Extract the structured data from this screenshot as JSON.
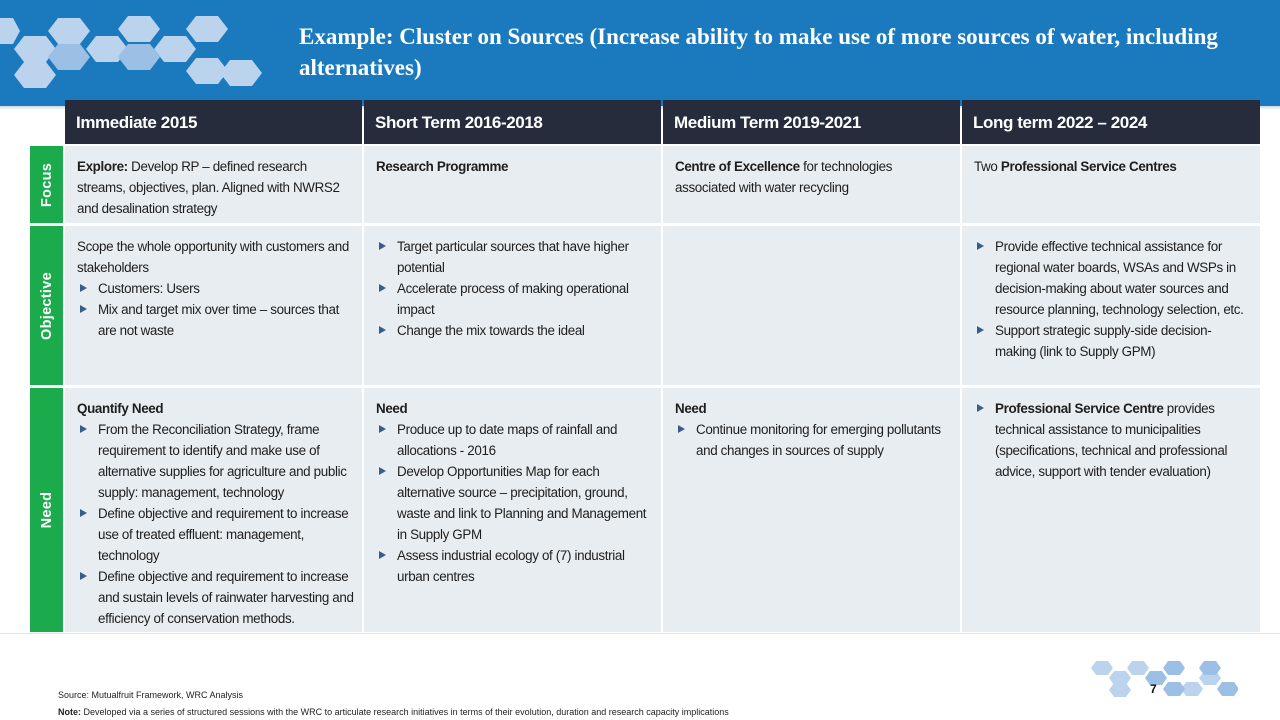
{
  "title": "Example: Cluster on Sources (Increase ability to make use of more sources of water, including alternatives)",
  "columns": [
    "Immediate 2015",
    "Short Term 2016-2018",
    "Medium Term 2019-2021",
    "Long term 2022 – 2024"
  ],
  "rows": [
    "Focus",
    "Objective",
    "Need"
  ],
  "focus": {
    "c1_bold": "Explore:",
    "c1_text": " Develop RP – defined research streams, objectives, plan.  Aligned with NWRS2 and desalination strategy",
    "c2_bold": "Research Programme",
    "c3_bold": "Centre of Excellence",
    "c3_text": " for technologies associated with water recycling",
    "c4_pre": "Two ",
    "c4_bold": "Professional Service Centres"
  },
  "objective": {
    "c1_intro": "Scope the whole opportunity with customers and stakeholders",
    "c1_bullets": [
      "Customers: Users",
      "Mix and target mix over time – sources that are not waste"
    ],
    "c2_bullets": [
      "Target particular sources that have higher potential",
      "Accelerate process of making operational impact",
      "Change the mix towards the ideal"
    ],
    "c4_bullets": [
      "Provide effective technical assistance for regional water boards, WSAs and WSPs in decision-making about water sources and resource planning, technology selection, etc.",
      "Support strategic supply-side decision-making (link to Supply GPM)"
    ]
  },
  "need": {
    "c1_heading": "Quantify Need",
    "c1_bullets": [
      "From the Reconciliation Strategy, frame requirement to identify and make use of alternative supplies for agriculture and public supply: management, technology",
      "Define objective and requirement to increase use of treated effluent: management, technology",
      "Define objective and requirement to increase and sustain levels of rainwater harvesting and efficiency of conservation methods."
    ],
    "c2_heading": "Need",
    "c2_bullets": [
      "Produce up to date maps of rainfall and allocations - 2016",
      "Develop Opportunities Map for each alternative source – precipitation, ground, waste and link to Planning and Management in Supply GPM",
      "Assess industrial ecology of (7) industrial urban centres"
    ],
    "c3_heading": "Need",
    "c3_bullets": [
      "Continue monitoring for emerging pollutants and changes in sources of supply"
    ],
    "c4_bold": "Professional Service Centre",
    "c4_text": " provides technical assistance to municipalities (specifications, technical and professional advice, support with tender evaluation)"
  },
  "footer": {
    "source": "Source: Mutualfruit Framework, WRC Analysis",
    "note_label": "Note:",
    "note_text": " Developed via a series of structured sessions with the WRC to articulate research initiatives in terms of their evolution, duration and research capacity implications",
    "page_number": "7"
  },
  "colors": {
    "banner": "#1b79be",
    "header": "#262c3c",
    "row_label": "#1cab4c",
    "cell": "#e8edf1"
  },
  "icons": [
    "hexagon-cluster-logo",
    "hexagon-footer-decoration",
    "bullet-triangle-icon"
  ]
}
